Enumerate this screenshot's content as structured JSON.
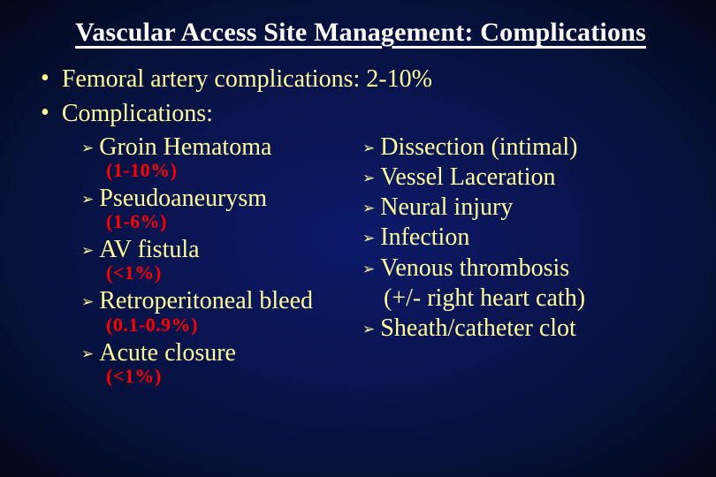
{
  "colors": {
    "text": "#ffff99",
    "title": "#ffffff",
    "percent": "#ff0000",
    "bg_center": "#0d1a6b",
    "bg_edge": "#020818"
  },
  "typography": {
    "title_fontsize": 30,
    "body_fontsize": 28,
    "percent_fontsize": 22,
    "arrow_fontsize": 17,
    "font_family": "Georgia / Times-like serif"
  },
  "title": "Vascular Access Site Management:  Complications",
  "l1": {
    "bullet": "•",
    "items": [
      "Femoral artery complications:  2-10%",
      "Complications:"
    ]
  },
  "left": {
    "bullet": "➢",
    "items": [
      {
        "label": "Groin Hematoma",
        "pct": "(1-10%)"
      },
      {
        "label": "Pseudoaneurysm",
        "pct": "(1-6%)"
      },
      {
        "label": "AV fistula",
        "pct": "(<1%)"
      },
      {
        "label": "Retroperitoneal bleed",
        "pct": "(0.1-0.9%)"
      },
      {
        "label": "Acute closure",
        "pct": "(<1%)"
      }
    ]
  },
  "right": {
    "bullet": "➢",
    "items": [
      {
        "label": "Dissection (intimal)"
      },
      {
        "label": "Vessel Laceration"
      },
      {
        "label": "Neural injury"
      },
      {
        "label": "Infection"
      },
      {
        "label": "Venous thrombosis",
        "sub": "(+/- right heart cath)"
      },
      {
        "label": "Sheath/catheter clot"
      }
    ]
  }
}
